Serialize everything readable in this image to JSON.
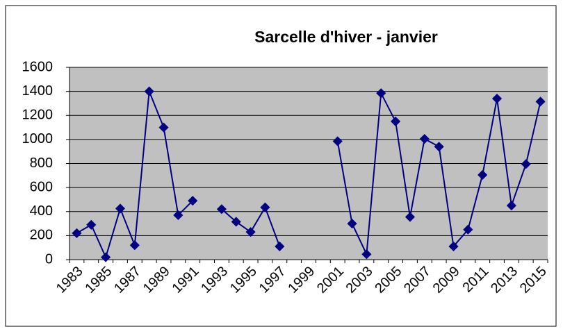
{
  "chart_data": {
    "type": "line",
    "title": "Sarcelle d'hiver - janvier",
    "categories": [
      "1983",
      null,
      "1985",
      null,
      "1987",
      null,
      "1989",
      null,
      "1991",
      null,
      "1993",
      null,
      "1995",
      null,
      "1997",
      null,
      "1999",
      null,
      "2001",
      null,
      "2003",
      null,
      "2005",
      null,
      "2007",
      null,
      "2009",
      null,
      "2011",
      null,
      "2013",
      null,
      "2015"
    ],
    "series": [
      {
        "name": "Sarcelle d'hiver",
        "color": "#000080",
        "values": [
          220,
          290,
          20,
          425,
          120,
          1400,
          1100,
          370,
          490,
          null,
          420,
          315,
          230,
          435,
          110,
          null,
          null,
          null,
          985,
          300,
          45,
          1385,
          1150,
          355,
          1005,
          940,
          110,
          250,
          705,
          1340,
          450,
          795,
          1315
        ]
      }
    ],
    "ylim": [
      0,
      1600
    ],
    "yticks": [
      0,
      200,
      400,
      600,
      800,
      1000,
      1200,
      1400,
      1600
    ],
    "grid": true,
    "plot_background": "#c0c0c0"
  }
}
